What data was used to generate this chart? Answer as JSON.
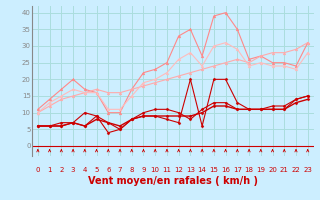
{
  "background_color": "#cceeff",
  "grid_color": "#aadddd",
  "xlabel": "Vent moyen/en rafales ( km/h )",
  "xlabel_color": "#cc0000",
  "xlabel_fontsize": 7,
  "yticks": [
    0,
    5,
    10,
    15,
    20,
    25,
    30,
    35,
    40
  ],
  "xticks": [
    0,
    1,
    2,
    3,
    4,
    5,
    6,
    7,
    8,
    9,
    10,
    11,
    12,
    13,
    14,
    15,
    16,
    17,
    18,
    19,
    20,
    21,
    22,
    23
  ],
  "ylim": [
    -3,
    42
  ],
  "xlim": [
    -0.5,
    23.5
  ],
  "lines": [
    {
      "x": [
        0,
        1,
        2,
        3,
        4,
        5,
        6,
        7,
        8,
        9,
        10,
        11,
        12,
        13,
        14,
        15,
        16,
        17,
        18,
        19,
        20,
        21,
        22,
        23
      ],
      "y": [
        6,
        6,
        6,
        7,
        6,
        9,
        7,
        5,
        8,
        9,
        9,
        8,
        7,
        20,
        6,
        20,
        20,
        13,
        11,
        11,
        11,
        11,
        14,
        15
      ],
      "color": "#cc0000",
      "lw": 0.8,
      "marker": "D",
      "ms": 1.5
    },
    {
      "x": [
        0,
        1,
        2,
        3,
        4,
        5,
        6,
        7,
        8,
        9,
        10,
        11,
        12,
        13,
        14,
        15,
        16,
        17,
        18,
        19,
        20,
        21,
        22,
        23
      ],
      "y": [
        6,
        6,
        7,
        7,
        10,
        9,
        4,
        5,
        8,
        10,
        11,
        11,
        10,
        8,
        11,
        13,
        13,
        11,
        11,
        11,
        12,
        12,
        14,
        15
      ],
      "color": "#cc0000",
      "lw": 0.8,
      "marker": "D",
      "ms": 1.5
    },
    {
      "x": [
        0,
        1,
        2,
        3,
        4,
        5,
        6,
        7,
        8,
        9,
        10,
        11,
        12,
        13,
        14,
        15,
        16,
        17,
        18,
        19,
        20,
        21,
        22,
        23
      ],
      "y": [
        6,
        6,
        6,
        7,
        6,
        8,
        7,
        6,
        8,
        9,
        9,
        9,
        9,
        9,
        10,
        12,
        12,
        11,
        11,
        11,
        11,
        11,
        13,
        14
      ],
      "color": "#cc0000",
      "lw": 1.0,
      "marker": "D",
      "ms": 1.5
    },
    {
      "x": [
        0,
        1,
        2,
        3,
        4,
        5,
        6,
        7,
        8,
        9,
        10,
        11,
        12,
        13,
        14,
        15,
        16,
        17,
        18,
        19,
        20,
        21,
        22,
        23
      ],
      "y": [
        11,
        14,
        17,
        20,
        17,
        16,
        10,
        10,
        17,
        22,
        23,
        25,
        33,
        35,
        27,
        39,
        40,
        35,
        26,
        27,
        25,
        25,
        24,
        31
      ],
      "color": "#ff8888",
      "lw": 0.8,
      "marker": "^",
      "ms": 2.0
    },
    {
      "x": [
        0,
        1,
        2,
        3,
        4,
        5,
        6,
        7,
        8,
        9,
        10,
        11,
        12,
        13,
        14,
        15,
        16,
        17,
        18,
        19,
        20,
        21,
        22,
        23
      ],
      "y": [
        10,
        12,
        14,
        15,
        16,
        17,
        16,
        16,
        17,
        18,
        19,
        20,
        21,
        22,
        23,
        24,
        25,
        26,
        25,
        27,
        28,
        28,
        29,
        31
      ],
      "color": "#ffaaaa",
      "lw": 0.8,
      "marker": "^",
      "ms": 2.0
    },
    {
      "x": [
        0,
        1,
        2,
        3,
        4,
        5,
        6,
        7,
        8,
        9,
        10,
        11,
        12,
        13,
        14,
        15,
        16,
        17,
        18,
        19,
        20,
        21,
        22,
        23
      ],
      "y": [
        10,
        13,
        15,
        17,
        16,
        16,
        11,
        11,
        15,
        19,
        20,
        22,
        26,
        28,
        24,
        30,
        31,
        29,
        24,
        25,
        24,
        24,
        23,
        28
      ],
      "color": "#ffbbbb",
      "lw": 0.8,
      "marker": "^",
      "ms": 2.0
    }
  ],
  "arrow_color": "#cc0000",
  "tick_label_color": "#cc0000",
  "tick_fontsize": 5,
  "ytick_fontsize": 5,
  "ytick_color": "#888888"
}
